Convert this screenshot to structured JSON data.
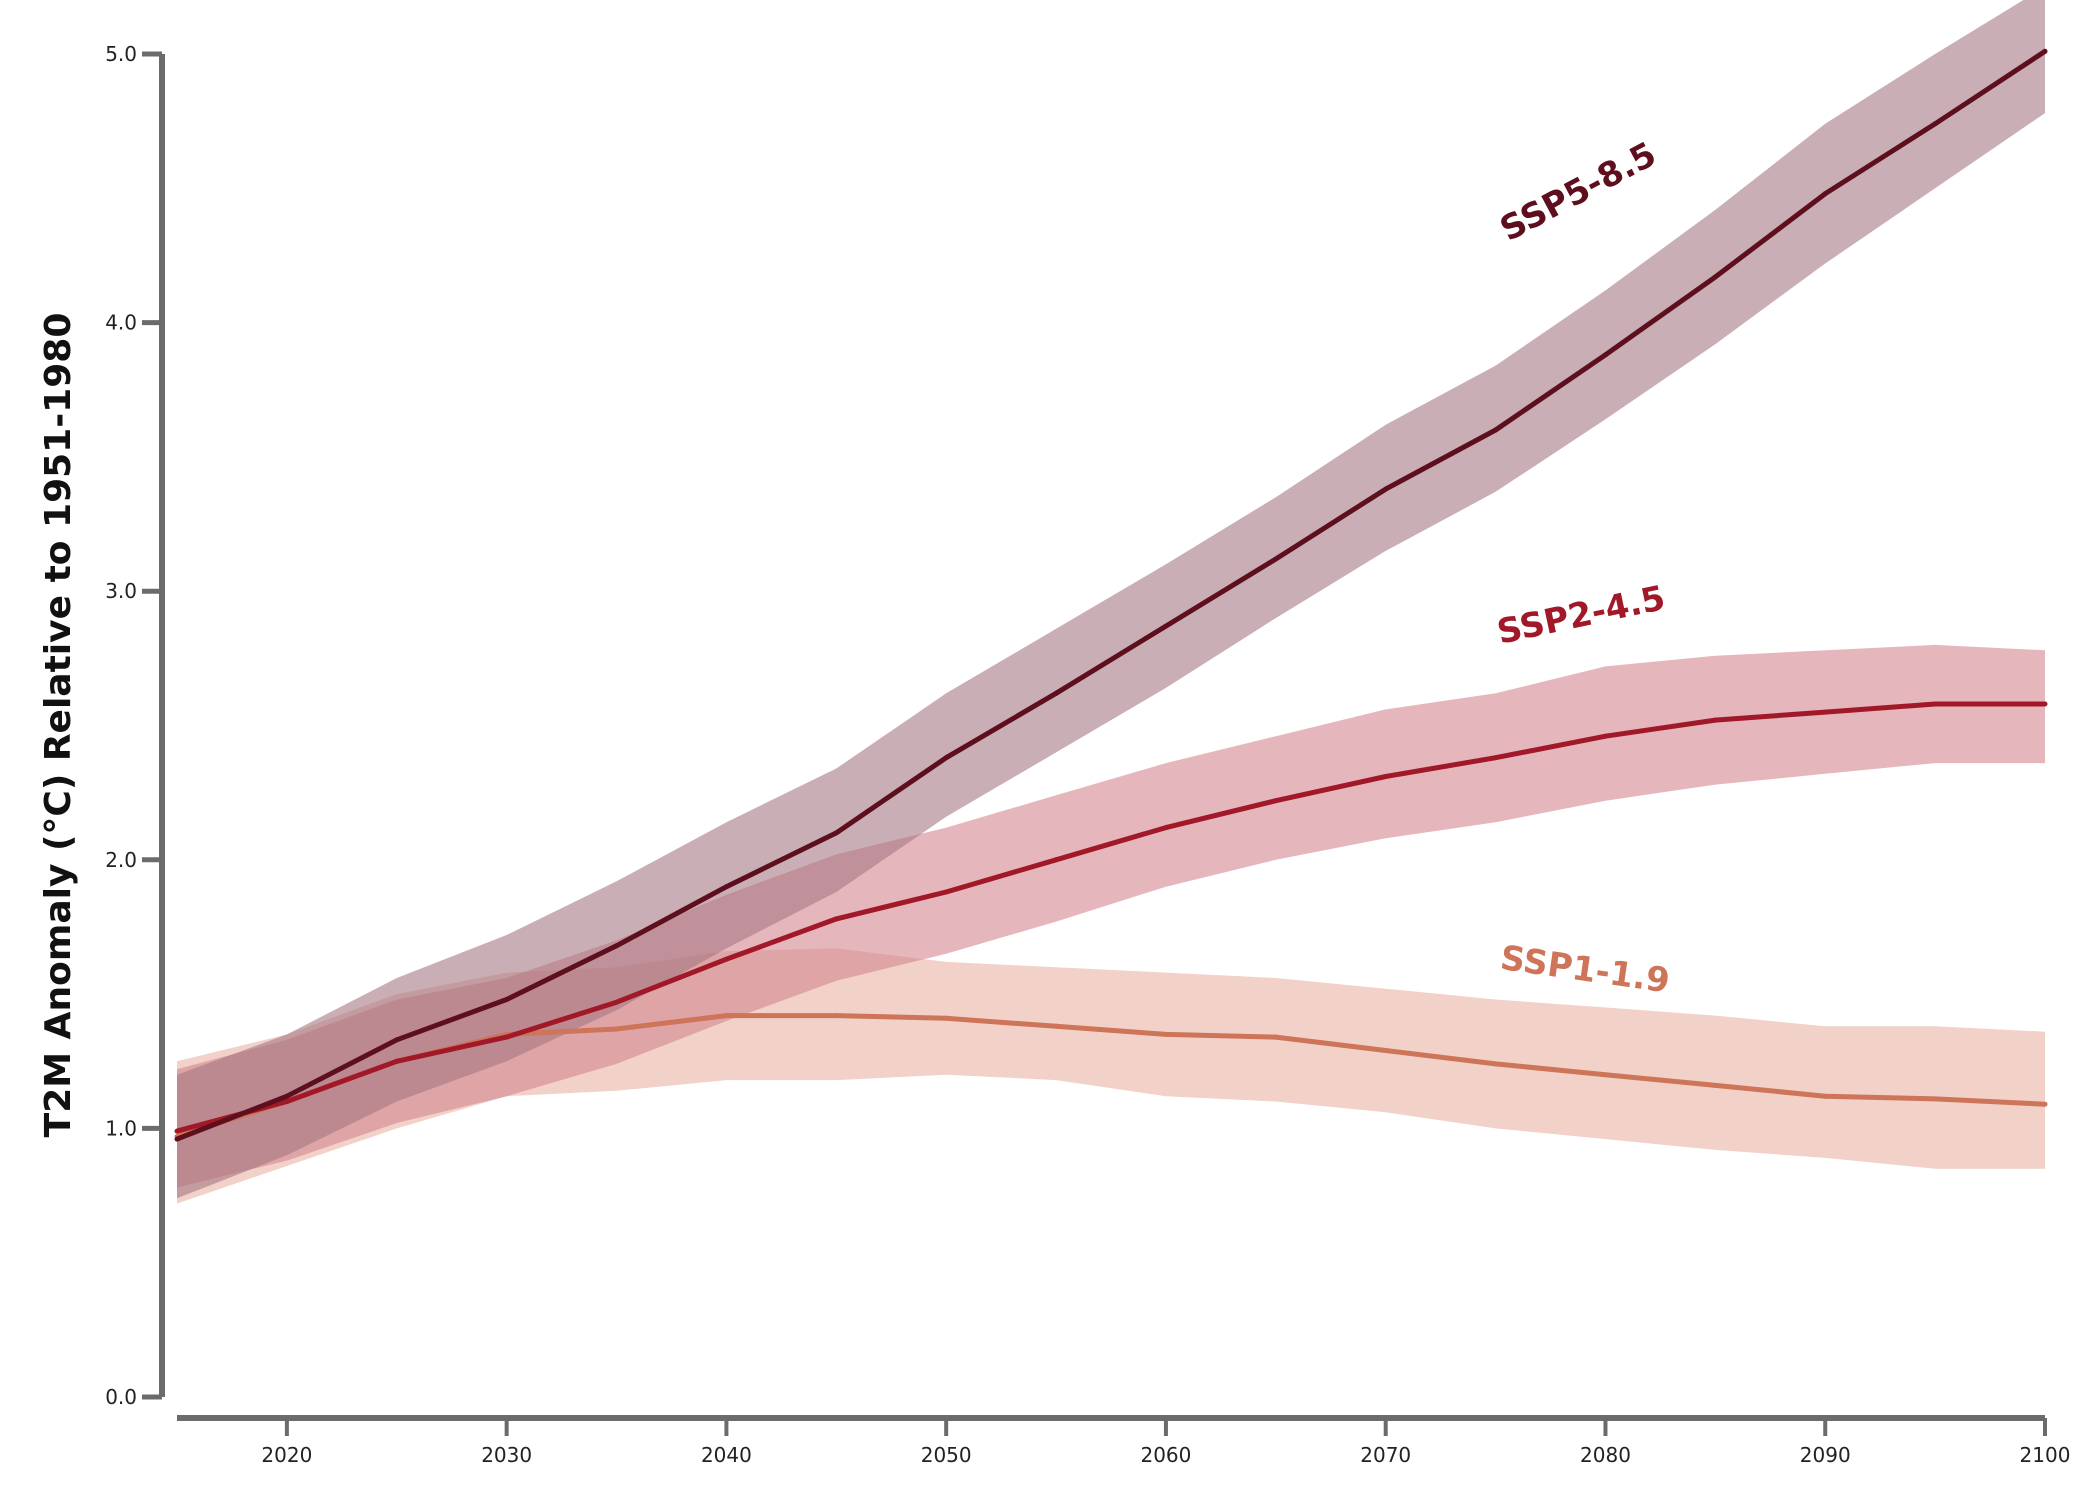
{
  "chart_data": {
    "type": "line",
    "title": "",
    "xlabel": "",
    "ylabel": "T2M Anomaly (°C) Relative to 1951-1980",
    "xlim": [
      2015,
      2100
    ],
    "ylim": [
      0,
      5
    ],
    "x_ticks": [
      2020,
      2030,
      2040,
      2050,
      2060,
      2070,
      2080,
      2090,
      2100
    ],
    "x_tick_labels": [
      "2020",
      "2030",
      "2040",
      "2050",
      "2060",
      "2070",
      "2080",
      "2090",
      "2100"
    ],
    "y_ticks": [
      0,
      1,
      2,
      3,
      4,
      5
    ],
    "y_tick_labels": [
      "0.0",
      "1.0",
      "2.0",
      "3.0",
      "4.0",
      "5.0"
    ],
    "grid": false,
    "legend": "inline labels",
    "series": [
      {
        "name": "SSP1-1.9",
        "color": "#cd7459",
        "band_color": "#e8b3a4",
        "x": [
          2015,
          2020,
          2025,
          2030,
          2035,
          2040,
          2045,
          2050,
          2055,
          2060,
          2065,
          2070,
          2075,
          2080,
          2085,
          2090,
          2095,
          2100
        ],
        "values": [
          0.97,
          1.1,
          1.25,
          1.35,
          1.37,
          1.42,
          1.42,
          1.41,
          1.38,
          1.35,
          1.34,
          1.29,
          1.24,
          1.2,
          1.16,
          1.12,
          1.11,
          1.09
        ],
        "lower": [
          0.72,
          0.86,
          1.0,
          1.12,
          1.14,
          1.18,
          1.18,
          1.2,
          1.18,
          1.12,
          1.1,
          1.06,
          1.0,
          0.96,
          0.92,
          0.89,
          0.85,
          0.85
        ],
        "upper": [
          1.25,
          1.35,
          1.5,
          1.58,
          1.6,
          1.66,
          1.67,
          1.62,
          1.6,
          1.58,
          1.56,
          1.52,
          1.48,
          1.45,
          1.42,
          1.38,
          1.38,
          1.36
        ]
      },
      {
        "name": "SSP2-4.5",
        "color": "#a11828",
        "band_color": "#d4868f",
        "x": [
          2015,
          2020,
          2025,
          2030,
          2035,
          2040,
          2045,
          2050,
          2055,
          2060,
          2065,
          2070,
          2075,
          2080,
          2085,
          2090,
          2095,
          2100
        ],
        "values": [
          0.99,
          1.1,
          1.25,
          1.34,
          1.47,
          1.63,
          1.78,
          1.88,
          2.0,
          2.12,
          2.22,
          2.31,
          2.38,
          2.46,
          2.52,
          2.55,
          2.58,
          2.58
        ],
        "lower": [
          0.78,
          0.88,
          1.02,
          1.12,
          1.24,
          1.4,
          1.55,
          1.65,
          1.77,
          1.9,
          2.0,
          2.08,
          2.14,
          2.22,
          2.28,
          2.32,
          2.36,
          2.36
        ],
        "upper": [
          1.22,
          1.33,
          1.48,
          1.56,
          1.7,
          1.87,
          2.02,
          2.12,
          2.24,
          2.36,
          2.46,
          2.56,
          2.62,
          2.72,
          2.76,
          2.78,
          2.8,
          2.78
        ]
      },
      {
        "name": "SSP5-8.5",
        "color": "#5e0f1e",
        "band_color": "#a67884",
        "x": [
          2015,
          2020,
          2025,
          2030,
          2035,
          2040,
          2045,
          2050,
          2055,
          2060,
          2065,
          2070,
          2075,
          2080,
          2085,
          2090,
          2095,
          2100
        ],
        "values": [
          0.96,
          1.12,
          1.33,
          1.48,
          1.68,
          1.9,
          2.1,
          2.38,
          2.62,
          2.87,
          3.12,
          3.38,
          3.6,
          3.88,
          4.17,
          4.48,
          4.74,
          5.01
        ],
        "lower": [
          0.74,
          0.9,
          1.1,
          1.25,
          1.44,
          1.67,
          1.88,
          2.16,
          2.4,
          2.64,
          2.9,
          3.15,
          3.37,
          3.64,
          3.92,
          4.22,
          4.5,
          4.78
        ],
        "upper": [
          1.2,
          1.35,
          1.56,
          1.72,
          1.92,
          2.14,
          2.34,
          2.62,
          2.86,
          3.1,
          3.35,
          3.62,
          3.84,
          4.12,
          4.42,
          4.74,
          5.0,
          5.25
        ]
      }
    ],
    "annotations": [
      {
        "text": "SSP5-8.5",
        "series": "SSP5-8.5",
        "x": 2079,
        "y": 4.45,
        "angle": -28
      },
      {
        "text": "SSP2-4.5",
        "series": "SSP2-4.5",
        "x": 2079,
        "y": 2.87,
        "angle": -12
      },
      {
        "text": "SSP1-1.9",
        "series": "SSP1-1.9",
        "x": 2079,
        "y": 1.55,
        "angle": 8
      }
    ]
  }
}
